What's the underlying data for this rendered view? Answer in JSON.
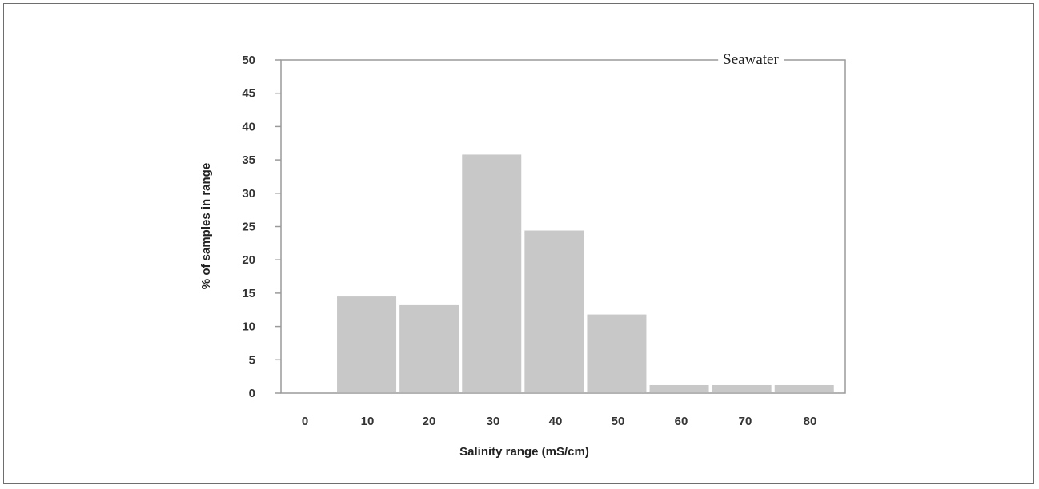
{
  "chart_data": {
    "type": "bar",
    "title": "",
    "annotation": "Seawater",
    "xlabel": "Salinity range (mS/cm)",
    "ylabel": "% of samples in range",
    "categories": [
      "0",
      "10",
      "20",
      "30",
      "40",
      "50",
      "60",
      "70",
      "80"
    ],
    "values": [
      0,
      14.5,
      13.2,
      35.8,
      24.4,
      11.8,
      1.2,
      1.2,
      1.2
    ],
    "ylim": [
      0,
      50
    ],
    "yticks": [
      "0",
      "5",
      "10",
      "15",
      "20",
      "25",
      "30",
      "35",
      "40",
      "45",
      "50"
    ],
    "grid": false,
    "bar_color": "#c8c8c8",
    "axis_color": "#9a9a9a"
  }
}
